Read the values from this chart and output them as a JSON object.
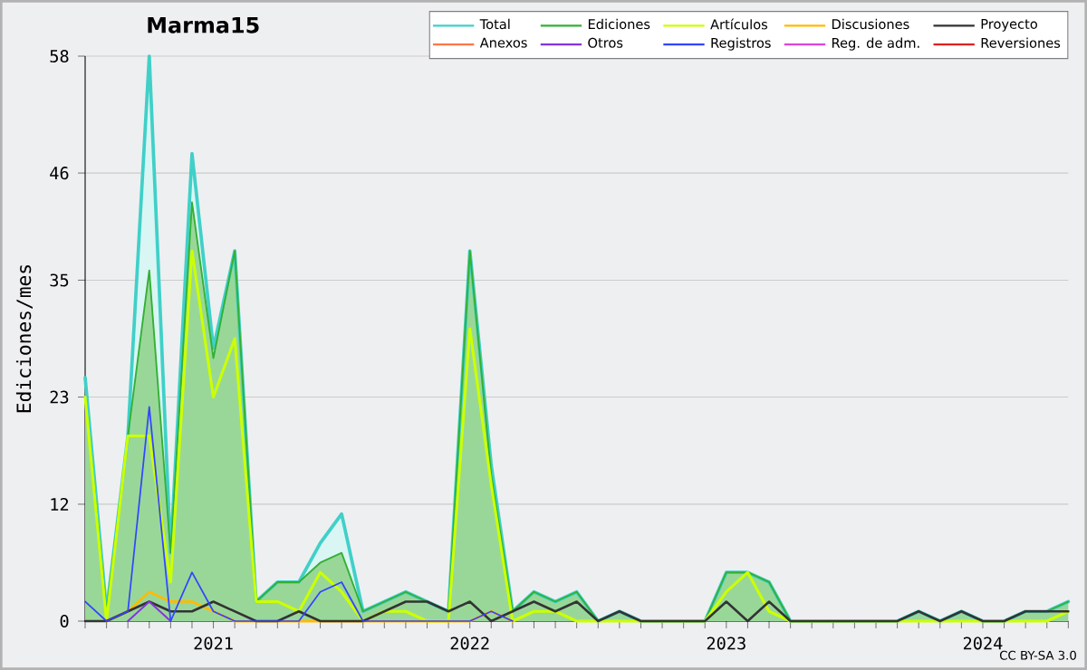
{
  "chart_data": {
    "type": "area",
    "title": "Marma15",
    "ylabel": "Ediciones/mes",
    "annotations": [
      "CC BY-SA 3.0"
    ],
    "x": [
      "2020-07",
      "2020-08",
      "2020-09",
      "2020-10",
      "2020-11",
      "2020-12",
      "2021-01",
      "2021-02",
      "2021-03",
      "2021-04",
      "2021-05",
      "2021-06",
      "2021-07",
      "2021-08",
      "2021-09",
      "2021-10",
      "2021-11",
      "2021-12",
      "2022-01",
      "2022-02",
      "2022-03",
      "2022-04",
      "2022-05",
      "2022-06",
      "2022-07",
      "2022-08",
      "2022-09",
      "2022-10",
      "2022-11",
      "2022-12",
      "2023-01",
      "2023-02",
      "2023-03",
      "2023-04",
      "2023-05",
      "2023-06",
      "2023-07",
      "2023-08",
      "2023-09",
      "2023-10",
      "2023-11",
      "2023-12",
      "2024-01",
      "2024-02",
      "2024-03",
      "2024-04",
      "2024-05"
    ],
    "xlim": [
      "2020-07",
      "2024-05"
    ],
    "xticks": [
      {
        "value": "2020-07",
        "label": null
      },
      {
        "value": "2020-08",
        "label": null
      },
      {
        "value": "2020-09",
        "label": null
      },
      {
        "value": "2020-10",
        "label": null
      },
      {
        "value": "2020-11",
        "label": null
      },
      {
        "value": "2020-12",
        "label": null
      },
      {
        "value": "2021-01",
        "label": "2021"
      },
      {
        "value": "2021-02",
        "label": null
      },
      {
        "value": "2021-03",
        "label": null
      },
      {
        "value": "2021-04",
        "label": null
      },
      {
        "value": "2021-05",
        "label": null
      },
      {
        "value": "2021-06",
        "label": null
      },
      {
        "value": "2021-07",
        "label": null
      },
      {
        "value": "2021-08",
        "label": null
      },
      {
        "value": "2021-09",
        "label": null
      },
      {
        "value": "2021-10",
        "label": null
      },
      {
        "value": "2021-11",
        "label": null
      },
      {
        "value": "2021-12",
        "label": null
      },
      {
        "value": "2022-01",
        "label": "2022"
      },
      {
        "value": "2022-02",
        "label": null
      },
      {
        "value": "2022-03",
        "label": null
      },
      {
        "value": "2022-04",
        "label": null
      },
      {
        "value": "2022-05",
        "label": null
      },
      {
        "value": "2022-06",
        "label": null
      },
      {
        "value": "2022-07",
        "label": null
      },
      {
        "value": "2022-08",
        "label": null
      },
      {
        "value": "2022-09",
        "label": null
      },
      {
        "value": "2022-10",
        "label": null
      },
      {
        "value": "2022-11",
        "label": null
      },
      {
        "value": "2022-12",
        "label": null
      },
      {
        "value": "2023-01",
        "label": "2023"
      },
      {
        "value": "2023-02",
        "label": null
      },
      {
        "value": "2023-03",
        "label": null
      },
      {
        "value": "2023-04",
        "label": null
      },
      {
        "value": "2023-05",
        "label": null
      },
      {
        "value": "2023-06",
        "label": null
      },
      {
        "value": "2023-07",
        "label": null
      },
      {
        "value": "2023-08",
        "label": null
      },
      {
        "value": "2023-09",
        "label": null
      },
      {
        "value": "2023-10",
        "label": null
      },
      {
        "value": "2023-11",
        "label": null
      },
      {
        "value": "2023-12",
        "label": null
      },
      {
        "value": "2024-01",
        "label": "2024"
      },
      {
        "value": "2024-02",
        "label": null
      },
      {
        "value": "2024-03",
        "label": null
      },
      {
        "value": "2024-04",
        "label": null
      },
      {
        "value": "2024-05",
        "label": null
      }
    ],
    "ylim": [
      0,
      58
    ],
    "yticks": [
      0,
      12,
      23,
      35,
      46,
      58
    ],
    "grid": "y",
    "legend": "top right",
    "series": [
      {
        "name": "Total",
        "color": "#40d0c8",
        "values": [
          25,
          1,
          19,
          58,
          7,
          48,
          28,
          38,
          2,
          4,
          4,
          8,
          11,
          1,
          2,
          3,
          2,
          1,
          38,
          16,
          1,
          3,
          2,
          3,
          0,
          1,
          0,
          0,
          0,
          0,
          5,
          5,
          4,
          0,
          0,
          0,
          0,
          0,
          0,
          1,
          0,
          1,
          0,
          0,
          1,
          1,
          2
        ]
      },
      {
        "name": "Ediciones",
        "color": "#33b033",
        "values": [
          23,
          1,
          19,
          36,
          7,
          43,
          27,
          38,
          2,
          4,
          4,
          6,
          7,
          1,
          2,
          3,
          2,
          1,
          38,
          15,
          1,
          3,
          2,
          3,
          0,
          1,
          0,
          0,
          0,
          0,
          5,
          5,
          4,
          0,
          0,
          0,
          0,
          0,
          0,
          1,
          0,
          1,
          0,
          0,
          1,
          1,
          2
        ]
      },
      {
        "name": "Artículos",
        "type": "line",
        "color": "#ccff00",
        "values": [
          23,
          0,
          19,
          19,
          4,
          38,
          23,
          29,
          2,
          2,
          1,
          5,
          3,
          0,
          1,
          1,
          0,
          0,
          30,
          14,
          0,
          1,
          1,
          0,
          0,
          0,
          0,
          0,
          0,
          0,
          3,
          5,
          1,
          0,
          0,
          0,
          0,
          0,
          0,
          0,
          0,
          0,
          0,
          0,
          0,
          0,
          1
        ]
      },
      {
        "name": "Discusiones",
        "type": "line",
        "color": "#ffbb00",
        "values": [
          null,
          0,
          1,
          3,
          2,
          2,
          1,
          0,
          null,
          null,
          null,
          null,
          null,
          null,
          null,
          null,
          null,
          null,
          0,
          1,
          0,
          null,
          null,
          null,
          null,
          null,
          null,
          null,
          null,
          null,
          null,
          null,
          null,
          null,
          null,
          null,
          null,
          null,
          null,
          null,
          null,
          null,
          null,
          null,
          null,
          null,
          null
        ]
      },
      {
        "name": "Proyecto",
        "type": "line",
        "color": "#333333",
        "values": [
          0,
          0,
          1,
          2,
          1,
          1,
          2,
          1,
          0,
          0,
          1,
          0,
          null,
          0,
          1,
          2,
          2,
          1,
          2,
          0,
          1,
          2,
          1,
          2,
          0,
          1,
          0,
          null,
          null,
          0,
          2,
          0,
          2,
          0,
          null,
          null,
          null,
          null,
          0,
          1,
          0,
          1,
          0,
          0,
          1,
          1,
          1
        ]
      },
      {
        "name": "Anexos",
        "type": "line",
        "color": "#ff7744",
        "values": [
          null,
          null,
          null,
          null,
          null,
          null,
          null,
          null,
          null,
          null,
          null,
          null,
          null,
          null,
          null,
          null,
          null,
          null,
          null,
          null,
          null,
          null,
          null,
          null,
          null,
          null,
          null,
          null,
          null,
          null,
          null,
          null,
          null,
          null,
          null,
          null,
          null,
          null,
          null,
          null,
          null,
          null,
          null,
          null,
          null,
          null,
          null
        ]
      },
      {
        "name": "Otros",
        "type": "line",
        "color": "#8833dd",
        "values": [
          null,
          null,
          0,
          2,
          0,
          null,
          null,
          null,
          null,
          null,
          null,
          null,
          null,
          null,
          null,
          null,
          null,
          null,
          null,
          null,
          null,
          null,
          null,
          null,
          null,
          null,
          null,
          null,
          null,
          null,
          null,
          null,
          null,
          null,
          null,
          null,
          null,
          null,
          null,
          null,
          null,
          null,
          null,
          null,
          null,
          null,
          null
        ]
      },
      {
        "name": "Registros",
        "type": "line",
        "color": "#3344ff",
        "values": [
          2,
          0,
          1,
          22,
          0,
          5,
          1,
          0,
          null,
          null,
          0,
          3,
          4,
          0,
          null,
          null,
          null,
          null,
          0,
          1,
          0,
          null,
          null,
          null,
          null,
          null,
          null,
          null,
          null,
          null,
          null,
          null,
          null,
          null,
          null,
          null,
          null,
          null,
          null,
          null,
          null,
          null,
          null,
          null,
          null,
          null,
          null
        ]
      },
      {
        "name": "Reg. de adm.",
        "type": "line",
        "color": "#dd44dd",
        "values": [
          null,
          null,
          null,
          null,
          null,
          null,
          null,
          null,
          null,
          null,
          null,
          null,
          null,
          null,
          null,
          null,
          null,
          null,
          null,
          null,
          null,
          null,
          null,
          null,
          null,
          null,
          null,
          null,
          null,
          null,
          null,
          null,
          null,
          null,
          null,
          null,
          null,
          null,
          null,
          null,
          null,
          null,
          null,
          null,
          null,
          null,
          null
        ]
      },
      {
        "name": "Reversiones",
        "type": "line",
        "color": "#dd2222",
        "values": [
          null,
          null,
          null,
          null,
          null,
          null,
          null,
          null,
          null,
          null,
          null,
          null,
          null,
          null,
          null,
          null,
          null,
          null,
          null,
          null,
          null,
          null,
          null,
          null,
          null,
          null,
          null,
          null,
          null,
          null,
          null,
          null,
          null,
          null,
          null,
          null,
          null,
          null,
          null,
          null,
          null,
          null,
          null,
          null,
          null,
          null,
          null
        ]
      }
    ]
  }
}
